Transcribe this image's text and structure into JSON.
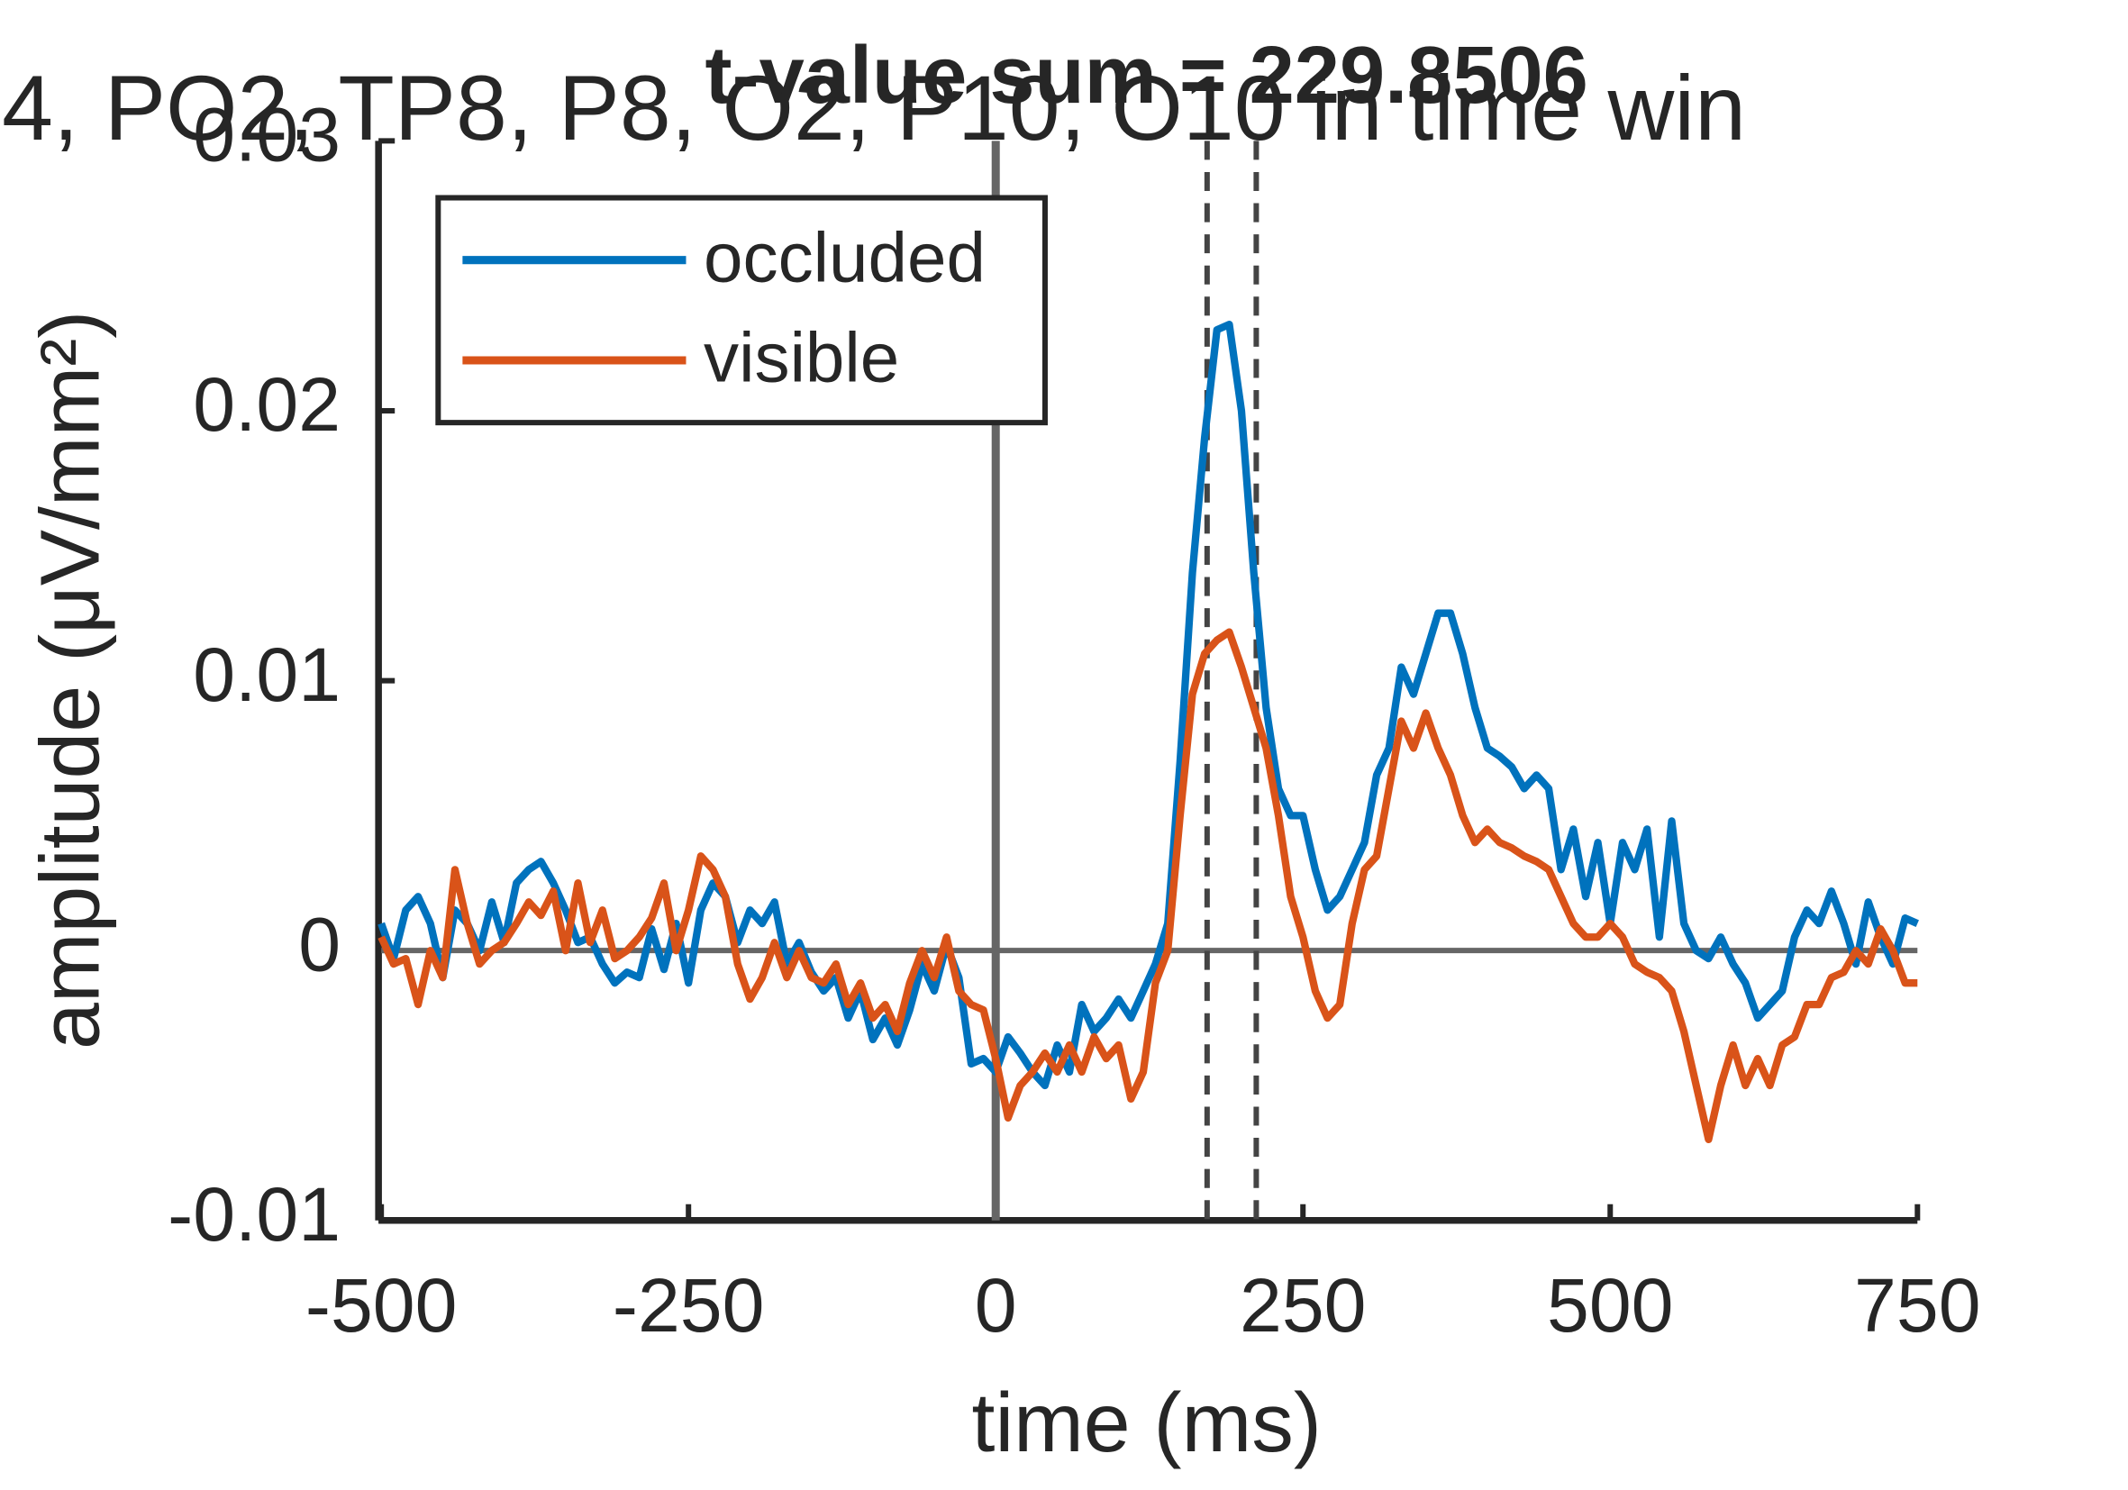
{
  "chart_data": {
    "type": "line",
    "title": "t-value sum = 229.8506",
    "subtitle": "4, PO2, TP8, P8, O2, P10, O10 in time win",
    "x_label": "time (ms)",
    "y_label": "amplitude (μV/mm²)",
    "x": [
      -500,
      -490,
      -480,
      -470,
      -460,
      -450,
      -440,
      -430,
      -420,
      -410,
      -400,
      -390,
      -380,
      -370,
      -360,
      -350,
      -340,
      -330,
      -320,
      -310,
      -300,
      -290,
      -280,
      -270,
      -260,
      -250,
      -240,
      -230,
      -220,
      -210,
      -200,
      -190,
      -180,
      -170,
      -160,
      -150,
      -140,
      -130,
      -120,
      -110,
      -100,
      -90,
      -80,
      -70,
      -60,
      -50,
      -40,
      -30,
      -20,
      -10,
      0,
      10,
      20,
      30,
      40,
      50,
      60,
      70,
      80,
      90,
      100,
      110,
      120,
      130,
      140,
      150,
      160,
      170,
      180,
      190,
      200,
      210,
      220,
      230,
      240,
      250,
      260,
      270,
      280,
      290,
      300,
      310,
      320,
      330,
      340,
      350,
      360,
      370,
      380,
      390,
      400,
      410,
      420,
      430,
      440,
      450,
      460,
      470,
      480,
      490,
      500,
      510,
      520,
      530,
      540,
      550,
      560,
      570,
      580,
      590,
      600,
      610,
      620,
      630,
      640,
      650,
      660,
      670,
      680,
      690,
      700,
      710,
      720,
      730,
      740,
      750
    ],
    "series": [
      {
        "name": "occluded",
        "color": "#0072BD",
        "values": [
          0.001,
          -0.0003,
          0.0015,
          0.002,
          0.001,
          -0.001,
          0.0015,
          0.001,
          0.0,
          0.0018,
          0.0003,
          0.0025,
          0.003,
          0.0033,
          0.0025,
          0.0015,
          0.0003,
          0.0005,
          -0.0005,
          -0.0012,
          -0.0008,
          -0.001,
          0.0008,
          -0.0007,
          0.001,
          -0.0012,
          0.0015,
          0.0025,
          0.002,
          0.0003,
          0.0015,
          0.001,
          0.0018,
          -0.0005,
          0.0003,
          -0.0008,
          -0.0015,
          -0.001,
          -0.0025,
          -0.0015,
          -0.0033,
          -0.0025,
          -0.0035,
          -0.0022,
          -0.0005,
          -0.0015,
          0.0002,
          -0.001,
          -0.0042,
          -0.004,
          -0.0045,
          -0.0032,
          -0.0038,
          -0.0045,
          -0.005,
          -0.0035,
          -0.0045,
          -0.002,
          -0.003,
          -0.0025,
          -0.0018,
          -0.0025,
          -0.0015,
          -0.0005,
          0.001,
          0.007,
          0.014,
          0.019,
          0.023,
          0.0232,
          0.02,
          0.014,
          0.009,
          0.006,
          0.005,
          0.005,
          0.003,
          0.0015,
          0.002,
          0.003,
          0.004,
          0.0065,
          0.0075,
          0.0105,
          0.0095,
          0.011,
          0.0125,
          0.0125,
          0.011,
          0.009,
          0.0075,
          0.0072,
          0.0068,
          0.006,
          0.0065,
          0.006,
          0.003,
          0.0045,
          0.002,
          0.004,
          0.001,
          0.004,
          0.003,
          0.0045,
          0.0005,
          0.0048,
          0.001,
          0.0,
          -0.0003,
          0.0005,
          -0.0005,
          -0.0012,
          -0.0025,
          -0.002,
          -0.0015,
          0.0005,
          0.0015,
          0.001,
          0.0022,
          0.001,
          -0.0005,
          0.0018,
          0.0005,
          -0.0005,
          0.0012,
          0.001
        ]
      },
      {
        "name": "visible",
        "color": "#D95319",
        "values": [
          0.0005,
          -0.0005,
          -0.0003,
          -0.002,
          0.0,
          -0.001,
          0.003,
          0.001,
          -0.0005,
          0.0,
          0.0003,
          0.001,
          0.0018,
          0.0013,
          0.0022,
          0.0,
          0.0025,
          0.0003,
          0.0015,
          -0.0003,
          0.0,
          0.0005,
          0.0012,
          0.0025,
          0.0,
          0.0015,
          0.0035,
          0.003,
          0.002,
          -0.0005,
          -0.0018,
          -0.001,
          0.0003,
          -0.001,
          0.0,
          -0.001,
          -0.0012,
          -0.0005,
          -0.002,
          -0.0012,
          -0.0025,
          -0.002,
          -0.003,
          -0.0012,
          0.0,
          -0.001,
          0.0005,
          -0.0015,
          -0.002,
          -0.0022,
          -0.004,
          -0.0062,
          -0.005,
          -0.0045,
          -0.0038,
          -0.0045,
          -0.0035,
          -0.0045,
          -0.0032,
          -0.004,
          -0.0035,
          -0.0055,
          -0.0045,
          -0.0012,
          0.0,
          0.005,
          0.0095,
          0.011,
          0.0115,
          0.0118,
          0.0105,
          0.009,
          0.0075,
          0.005,
          0.002,
          0.0005,
          -0.0015,
          -0.0025,
          -0.002,
          0.001,
          0.003,
          0.0035,
          0.006,
          0.0085,
          0.0075,
          0.0088,
          0.0075,
          0.0065,
          0.005,
          0.004,
          0.0045,
          0.004,
          0.0038,
          0.0035,
          0.0033,
          0.003,
          0.002,
          0.001,
          0.0005,
          0.0005,
          0.001,
          0.0005,
          -0.0005,
          -0.0008,
          -0.001,
          -0.0015,
          -0.003,
          -0.005,
          -0.007,
          -0.005,
          -0.0035,
          -0.005,
          -0.004,
          -0.005,
          -0.0035,
          -0.0032,
          -0.002,
          -0.002,
          -0.001,
          -0.0008,
          0.0,
          -0.0005,
          0.0008,
          0.0,
          -0.0012,
          -0.0012
        ]
      }
    ],
    "window": [
      172,
      212
    ],
    "xlim": [
      -500,
      750
    ],
    "xticks": [
      -500,
      -250,
      0,
      250,
      500,
      750
    ],
    "ylim": [
      -0.01,
      0.03
    ],
    "yticks": [
      -0.01,
      0,
      0.01,
      0.02,
      0.03
    ],
    "legend": "northwest"
  }
}
